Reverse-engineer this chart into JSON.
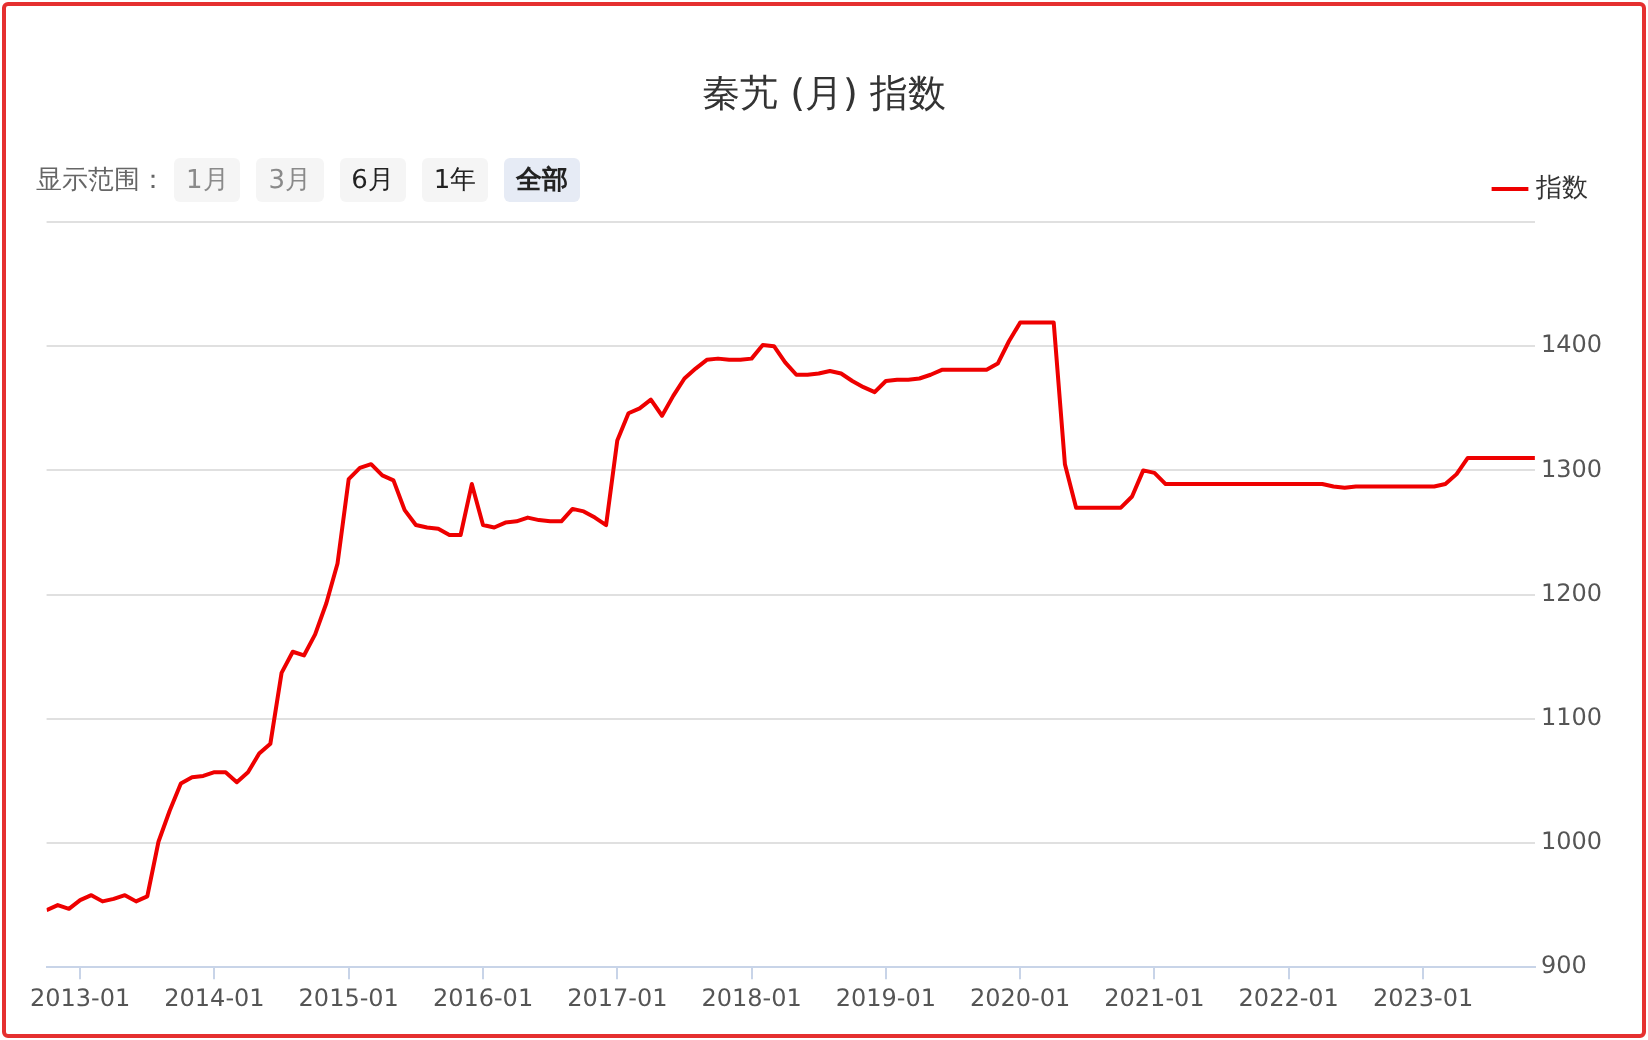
{
  "chart_data": {
    "type": "line",
    "title": "秦艽 (月) 指数",
    "annotations": [
      "显示范围：",
      "1月",
      "3月",
      "6月",
      "1年",
      "全部"
    ],
    "x": [
      "2012-10",
      "2012-11",
      "2012-12",
      "2013-01",
      "2013-02",
      "2013-03",
      "2013-04",
      "2013-05",
      "2013-06",
      "2013-07",
      "2013-08",
      "2013-09",
      "2013-10",
      "2013-11",
      "2013-12",
      "2014-01",
      "2014-02",
      "2014-03",
      "2014-04",
      "2014-05",
      "2014-06",
      "2014-07",
      "2014-08",
      "2014-09",
      "2014-10",
      "2014-11",
      "2014-12",
      "2015-01",
      "2015-02",
      "2015-03",
      "2015-04",
      "2015-05",
      "2015-06",
      "2015-07",
      "2015-08",
      "2015-09",
      "2015-10",
      "2015-11",
      "2015-12",
      "2016-01",
      "2016-02",
      "2016-03",
      "2016-04",
      "2016-05",
      "2016-06",
      "2016-07",
      "2016-08",
      "2016-09",
      "2016-10",
      "2016-11",
      "2016-12",
      "2017-01",
      "2017-02",
      "2017-03",
      "2017-04",
      "2017-05",
      "2017-06",
      "2017-07",
      "2017-08",
      "2017-09",
      "2017-10",
      "2017-11",
      "2017-12",
      "2018-01",
      "2018-02",
      "2018-03",
      "2018-04",
      "2018-05",
      "2018-06",
      "2018-07",
      "2018-08",
      "2018-09",
      "2018-10",
      "2018-11",
      "2018-12",
      "2019-01",
      "2019-02",
      "2019-03",
      "2019-04",
      "2019-05",
      "2019-06",
      "2019-07",
      "2019-08",
      "2019-09",
      "2019-10",
      "2019-11",
      "2019-12",
      "2020-01",
      "2020-02",
      "2020-03",
      "2020-04",
      "2020-05",
      "2020-06",
      "2020-07",
      "2020-08",
      "2020-09",
      "2020-10",
      "2020-11",
      "2020-12",
      "2021-01",
      "2021-02",
      "2021-03",
      "2021-04",
      "2021-05",
      "2021-06",
      "2021-07",
      "2021-08",
      "2021-09",
      "2021-10",
      "2021-11",
      "2021-12",
      "2022-01",
      "2022-02",
      "2022-03",
      "2022-04",
      "2022-05",
      "2022-06",
      "2022-07",
      "2022-08",
      "2022-09",
      "2022-10",
      "2022-11",
      "2022-12",
      "2023-01",
      "2023-02",
      "2023-03",
      "2023-04",
      "2023-05",
      "2023-06",
      "2023-07",
      "2023-08",
      "2023-09",
      "2023-10",
      "2023-11"
    ],
    "series": [
      {
        "name": "指数",
        "color": "#ee0000",
        "values": [
          946,
          950,
          947,
          954,
          958,
          953,
          955,
          958,
          953,
          957,
          1001,
          1026,
          1048,
          1053,
          1054,
          1057,
          1057,
          1049,
          1057,
          1072,
          1080,
          1137,
          1154,
          1151,
          1168,
          1193,
          1225,
          1293,
          1302,
          1305,
          1296,
          1292,
          1268,
          1256,
          1254,
          1253,
          1248,
          1248,
          1289,
          1256,
          1254,
          1258,
          1259,
          1262,
          1260,
          1259,
          1259,
          1269,
          1267,
          1262,
          1256,
          1324,
          1346,
          1350,
          1357,
          1344,
          1360,
          1374,
          1382,
          1389,
          1390,
          1389,
          1389,
          1390,
          1401,
          1400,
          1387,
          1377,
          1377,
          1378,
          1380,
          1378,
          1372,
          1367,
          1363,
          1372,
          1373,
          1373,
          1374,
          1377,
          1381,
          1381,
          1381,
          1381,
          1381,
          1386,
          1404,
          1419,
          1419,
          1419,
          1419,
          1305,
          1270,
          1270,
          1270,
          1270,
          1270,
          1279,
          1300,
          1298,
          1289,
          1289,
          1289,
          1289,
          1289,
          1289,
          1289,
          1289,
          1289,
          1289,
          1289,
          1289,
          1289,
          1289,
          1289,
          1287,
          1286,
          1287,
          1287,
          1287,
          1287,
          1287,
          1287,
          1287,
          1287,
          1289,
          1297,
          1310,
          1310,
          1310,
          1310,
          1310,
          1310,
          1310
        ]
      }
    ],
    "xlim": [
      "2012-10",
      "2023-11"
    ],
    "xticks": [
      "2013-01",
      "2014-01",
      "2015-01",
      "2016-01",
      "2017-01",
      "2018-01",
      "2019-01",
      "2020-01",
      "2021-01",
      "2022-01",
      "2023-01"
    ],
    "ylim": [
      900,
      1500
    ],
    "yticks": [
      900,
      1000,
      1100,
      1200,
      1300,
      1400,
      {
        "value": 1500,
        "label": null
      }
    ],
    "grid": "y",
    "legend": "top right"
  }
}
